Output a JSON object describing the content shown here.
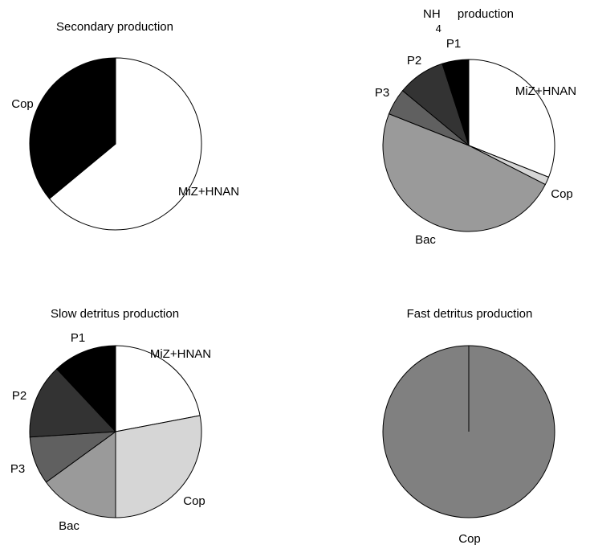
{
  "chart_data": [
    {
      "type": "pie",
      "title": "Secondary production",
      "slices": [
        {
          "label": "MiZ+HNAN",
          "value": 64,
          "color": "#ffffff"
        },
        {
          "label": "Cop",
          "value": 36,
          "color": "#000000"
        }
      ]
    },
    {
      "type": "pie",
      "title": "NH",
      "title_sub": "4",
      "title_rest": "production",
      "slices": [
        {
          "label": "MiZ+HNAN",
          "value": 31,
          "color": "#ffffff"
        },
        {
          "label": "Cop",
          "value": 1.5,
          "color": "#d6d6d6"
        },
        {
          "label": "Bac",
          "value": 48.5,
          "color": "#9a9a9a"
        },
        {
          "label": "P3",
          "value": 5,
          "color": "#606060"
        },
        {
          "label": "P2",
          "value": 9,
          "color": "#333333"
        },
        {
          "label": "P1",
          "value": 5,
          "color": "#000000"
        }
      ]
    },
    {
      "type": "pie",
      "title": "Slow detritus production",
      "slices": [
        {
          "label": "MiZ+HNAN",
          "value": 22,
          "color": "#ffffff"
        },
        {
          "label": "Cop",
          "value": 28,
          "color": "#d6d6d6"
        },
        {
          "label": "Bac",
          "value": 15,
          "color": "#9a9a9a"
        },
        {
          "label": "P3",
          "value": 9,
          "color": "#606060"
        },
        {
          "label": "P2",
          "value": 14,
          "color": "#333333"
        },
        {
          "label": "P1",
          "value": 12,
          "color": "#000000"
        }
      ]
    },
    {
      "type": "pie",
      "title": "Fast detritus production",
      "slices": [
        {
          "label": "Cop",
          "value": 100,
          "color": "#808080"
        }
      ]
    }
  ]
}
